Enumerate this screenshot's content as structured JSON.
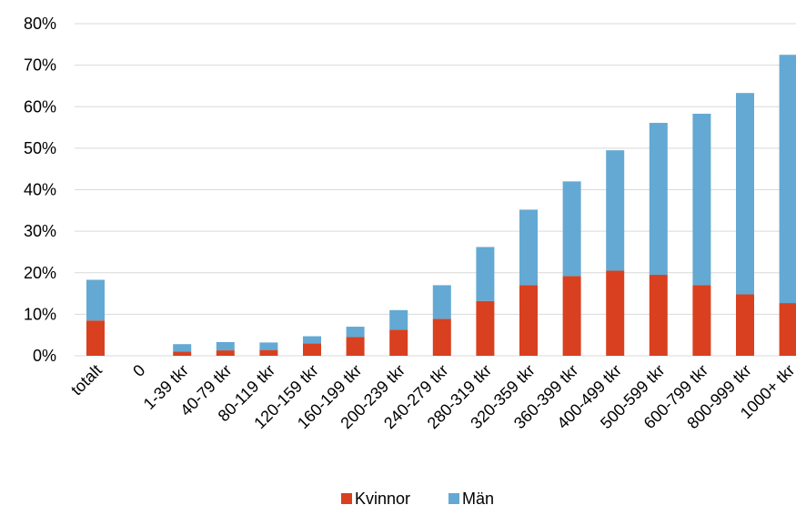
{
  "chart_data": {
    "type": "bar",
    "stacked": true,
    "title": "",
    "xlabel": "",
    "ylabel": "",
    "ylim": [
      0,
      80
    ],
    "y_ticks": [
      "0%",
      "10%",
      "20%",
      "30%",
      "40%",
      "50%",
      "60%",
      "70%",
      "80%"
    ],
    "grid": true,
    "legend_position": "bottom",
    "categories": [
      "totalt",
      "0",
      "1-39 tkr",
      "40-79 tkr",
      "80-119 tkr",
      "120-159 tkr",
      "160-199 tkr",
      "200-239 tkr",
      "240-279 tkr",
      "280-319 tkr",
      "320-359 tkr",
      "360-399 tkr",
      "400-499 tkr",
      "500-599 tkr",
      "600-799 tkr",
      "800-999 tkr",
      "1000+ tkr"
    ],
    "series": [
      {
        "name": "Kvinnor",
        "color": "#d9401f",
        "values": [
          8.5,
          0,
          1.0,
          1.3,
          1.4,
          3.0,
          4.5,
          6.3,
          8.9,
          13.2,
          17.0,
          19.2,
          20.5,
          19.5,
          17.0,
          14.8,
          12.7
        ]
      },
      {
        "name": "Män",
        "color": "#63a9d3",
        "values": [
          9.8,
          0,
          1.8,
          2.0,
          1.8,
          1.7,
          2.5,
          4.7,
          8.1,
          13.0,
          18.2,
          22.8,
          29.0,
          36.6,
          41.3,
          48.5,
          59.8
        ]
      }
    ]
  }
}
